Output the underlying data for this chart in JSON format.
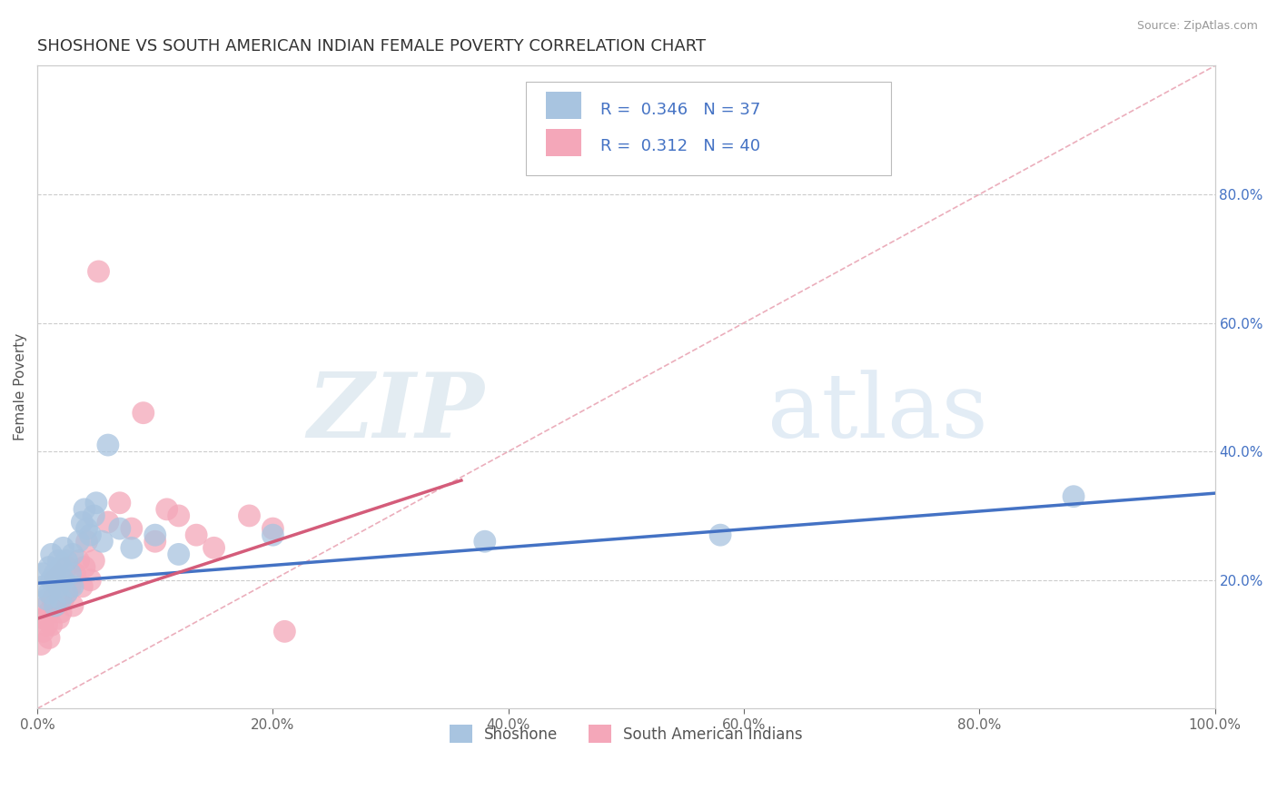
{
  "title": "SHOSHONE VS SOUTH AMERICAN INDIAN FEMALE POVERTY CORRELATION CHART",
  "source": "Source: ZipAtlas.com",
  "ylabel": "Female Poverty",
  "xlim": [
    0,
    1
  ],
  "ylim": [
    0,
    1
  ],
  "xticks": [
    0.0,
    0.2,
    0.4,
    0.6,
    0.8,
    1.0
  ],
  "yticks_right": [
    0.2,
    0.4,
    0.6,
    0.8
  ],
  "shoshone_R": 0.346,
  "shoshone_N": 37,
  "sai_R": 0.312,
  "sai_N": 40,
  "shoshone_color": "#a8c4e0",
  "sai_color": "#f4a7b9",
  "shoshone_line_color": "#4472c4",
  "sai_line_color": "#d45c7a",
  "legend_text_color": "#4472c4",
  "diag_line_color": "#e8a0b0",
  "watermark_zip": "ZIP",
  "watermark_atlas": "atlas",
  "background_color": "#ffffff",
  "shoshone_x": [
    0.005,
    0.005,
    0.008,
    0.01,
    0.01,
    0.012,
    0.012,
    0.015,
    0.015,
    0.018,
    0.018,
    0.02,
    0.02,
    0.022,
    0.022,
    0.025,
    0.025,
    0.028,
    0.03,
    0.03,
    0.035,
    0.038,
    0.04,
    0.042,
    0.045,
    0.048,
    0.05,
    0.055,
    0.06,
    0.07,
    0.08,
    0.1,
    0.12,
    0.2,
    0.38,
    0.58,
    0.88
  ],
  "shoshone_y": [
    0.19,
    0.21,
    0.17,
    0.18,
    0.22,
    0.2,
    0.24,
    0.16,
    0.21,
    0.19,
    0.23,
    0.17,
    0.22,
    0.2,
    0.25,
    0.18,
    0.23,
    0.21,
    0.19,
    0.24,
    0.26,
    0.29,
    0.31,
    0.28,
    0.27,
    0.3,
    0.32,
    0.26,
    0.41,
    0.28,
    0.25,
    0.27,
    0.24,
    0.27,
    0.26,
    0.27,
    0.33
  ],
  "sai_x": [
    0.003,
    0.005,
    0.006,
    0.008,
    0.008,
    0.01,
    0.01,
    0.012,
    0.013,
    0.015,
    0.015,
    0.018,
    0.018,
    0.02,
    0.02,
    0.022,
    0.025,
    0.025,
    0.028,
    0.03,
    0.032,
    0.035,
    0.038,
    0.04,
    0.042,
    0.045,
    0.048,
    0.052,
    0.06,
    0.07,
    0.08,
    0.09,
    0.1,
    0.11,
    0.12,
    0.135,
    0.15,
    0.18,
    0.2,
    0.21
  ],
  "sai_y": [
    0.1,
    0.12,
    0.14,
    0.13,
    0.16,
    0.11,
    0.15,
    0.13,
    0.17,
    0.16,
    0.2,
    0.14,
    0.19,
    0.15,
    0.21,
    0.17,
    0.18,
    0.22,
    0.19,
    0.16,
    0.21,
    0.23,
    0.19,
    0.22,
    0.26,
    0.2,
    0.23,
    0.68,
    0.29,
    0.32,
    0.28,
    0.46,
    0.26,
    0.31,
    0.3,
    0.27,
    0.25,
    0.3,
    0.28,
    0.12
  ],
  "shoshone_trend_x": [
    0.0,
    1.0
  ],
  "shoshone_trend_y": [
    0.195,
    0.335
  ],
  "sai_trend_x": [
    0.0,
    0.36
  ],
  "sai_trend_y": [
    0.14,
    0.355
  ]
}
